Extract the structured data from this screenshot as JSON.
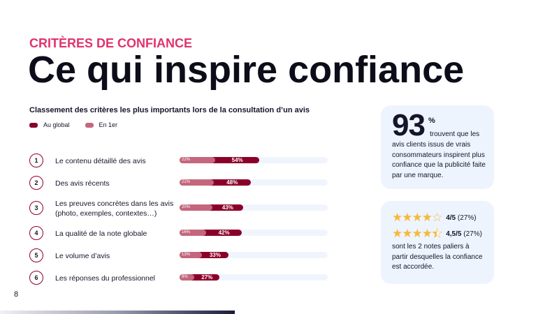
{
  "kicker": "CRITÈRES DE CONFIANCE",
  "title": "Ce qui inspire confiance",
  "subtitle": "Classement des critères les plus importants lors de la consultation d’un avis",
  "legend": {
    "global": "Au global",
    "first": "En 1er",
    "colors": {
      "global": "#8b0029",
      "first": "#c4677c"
    }
  },
  "rows": [
    {
      "rank": "1",
      "label": "Le contenu détaillé des avis",
      "global": 54,
      "first": 22,
      "global_label": "54%",
      "first_label": "22%"
    },
    {
      "rank": "2",
      "label": "Des avis récents",
      "global": 48,
      "first": 21,
      "global_label": "48%",
      "first_label": "21%"
    },
    {
      "rank": "3",
      "label": "Les preuves concrètes dans les avis (photo, exemples, contextes…)",
      "global": 43,
      "first": 20,
      "global_label": "43%",
      "first_label": "20%"
    },
    {
      "rank": "4",
      "label": "La qualité de la note globale",
      "global": 42,
      "first": 16,
      "global_label": "42%",
      "first_label": "16%"
    },
    {
      "rank": "5",
      "label": "Le volume d’avis",
      "global": 33,
      "first": 13,
      "global_label": "33%",
      "first_label": "13%"
    },
    {
      "rank": "6",
      "label": "Les réponses du professionnel",
      "global": 27,
      "first": 8,
      "global_label": "27%",
      "first_label": "8%"
    }
  ],
  "card1": {
    "number": "93",
    "percent": "%",
    "text1": "trouvent que les",
    "text2": "avis clients  issus de vrais consommateurs inspirent plus confiance que la publicité faite par une marque."
  },
  "card2": {
    "rating1": {
      "stars": 4,
      "label": "4/5",
      "pct": "(27%)"
    },
    "rating2": {
      "stars": 4.5,
      "label": "4,5/5",
      "pct": "(27%)"
    },
    "text": "sont les 2 notes paliers à partir desquelles la confiance est accordée."
  },
  "page_number": "8"
}
